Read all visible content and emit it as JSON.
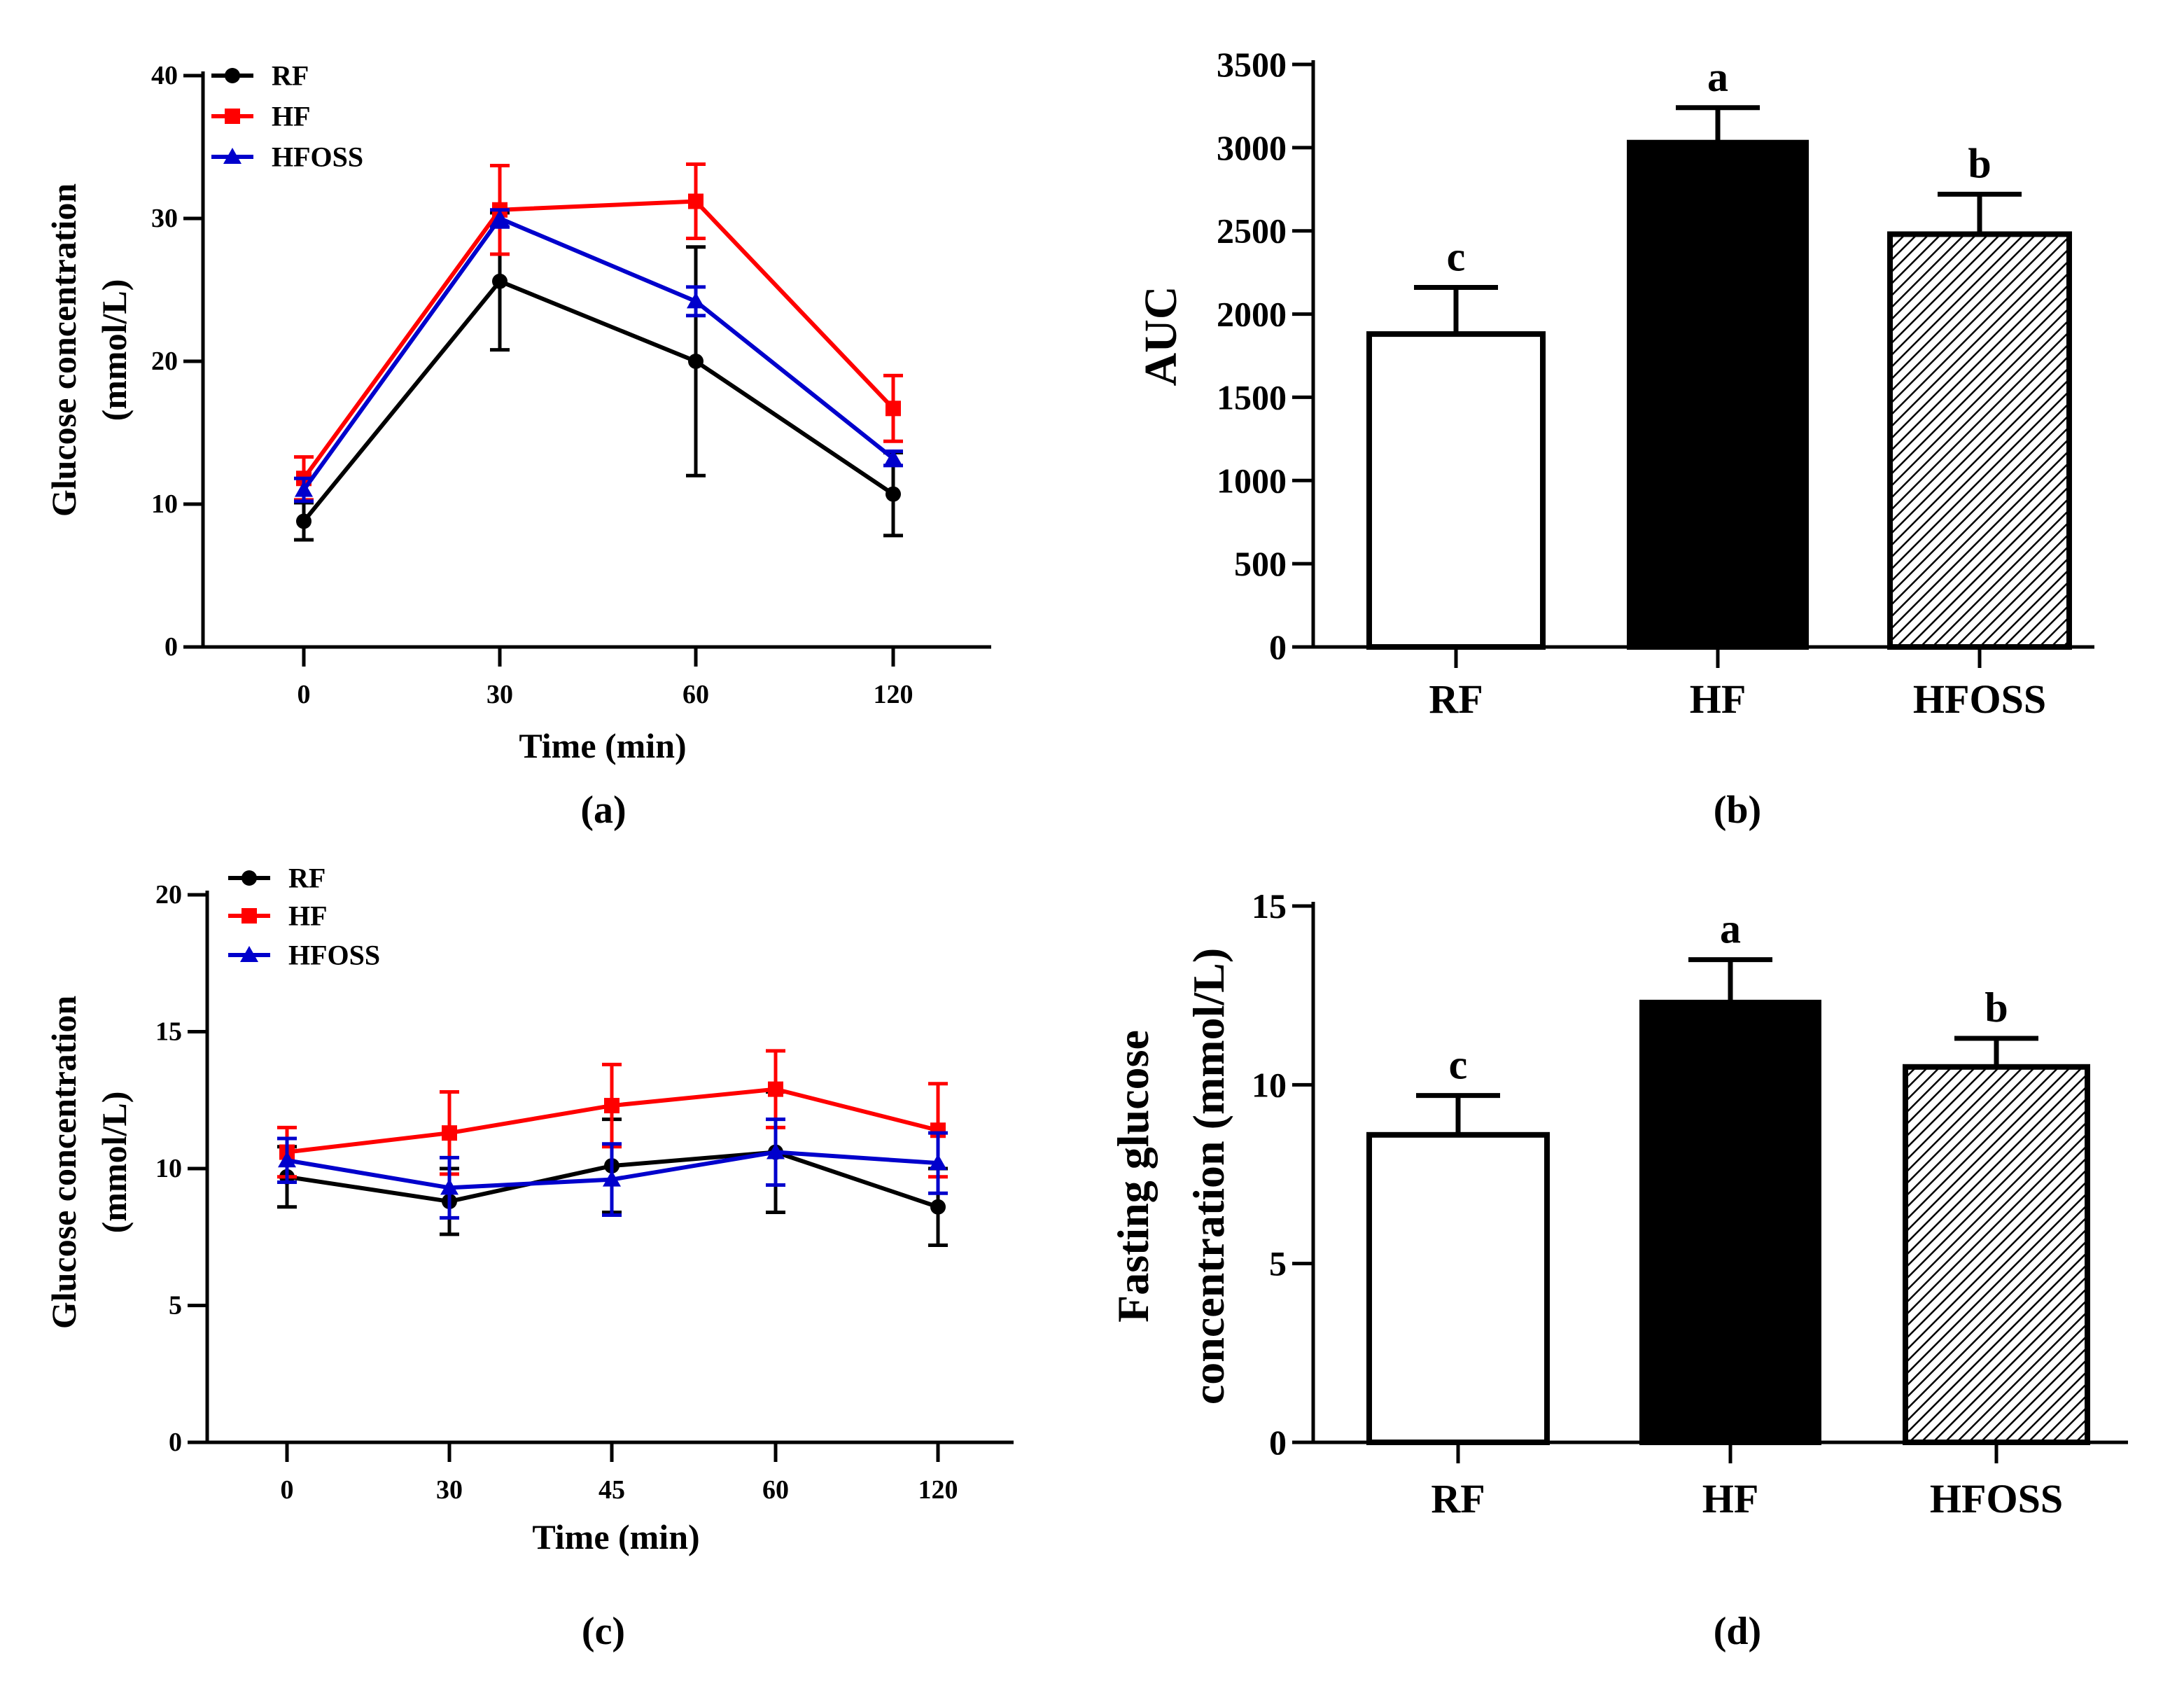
{
  "figure": {
    "panel_labels": [
      "(a)",
      "(b)",
      "(c)",
      "(d)"
    ]
  },
  "colors": {
    "RF": "#000000",
    "HF": "#ff0000",
    "HFOSS": "#0000cc"
  },
  "chart_data": [
    {
      "id": "a",
      "type": "line",
      "title": "",
      "xlabel": "Time (min)",
      "ylabel_lines": [
        "Glucose concentration",
        "(mmol/L)"
      ],
      "categories": [
        "0",
        "30",
        "60",
        "120"
      ],
      "ylim": [
        0,
        40
      ],
      "yticks": [
        "0",
        "10",
        "20",
        "30",
        "40"
      ],
      "legend": {
        "placement": "top-left",
        "entries": [
          "RF",
          "HF",
          "HFOSS"
        ]
      },
      "series": [
        {
          "name": "RF",
          "marker": "circle",
          "values": [
            8.8,
            25.6,
            20.0,
            10.7
          ],
          "errors": [
            1.3,
            4.8,
            8.0,
            2.9
          ]
        },
        {
          "name": "HF",
          "marker": "square",
          "values": [
            11.8,
            30.6,
            31.2,
            16.7
          ],
          "errors": [
            1.5,
            3.1,
            2.6,
            2.3
          ]
        },
        {
          "name": "HFOSS",
          "marker": "triangle",
          "values": [
            11.0,
            30.0,
            24.2,
            13.2
          ],
          "errors": [
            0.8,
            0.6,
            1.0,
            0.5
          ]
        }
      ]
    },
    {
      "id": "b",
      "type": "bar",
      "title": "",
      "xlabel": "",
      "ylabel_lines": [
        "AUC"
      ],
      "categories": [
        "RF",
        "HF",
        "HFOSS"
      ],
      "values": [
        1880,
        3030,
        2480
      ],
      "errors": [
        280,
        210,
        240
      ],
      "significance": [
        "c",
        "a",
        "b"
      ],
      "fills": [
        "white",
        "black",
        "hatched"
      ],
      "ylim": [
        0,
        3500
      ],
      "yticks": [
        "0",
        "500",
        "1000",
        "1500",
        "2000",
        "2500",
        "3000",
        "3500"
      ]
    },
    {
      "id": "c",
      "type": "line",
      "title": "",
      "xlabel": "Time (min)",
      "ylabel_lines": [
        "Glucose concentration",
        "(mmol/L)"
      ],
      "categories": [
        "0",
        "30",
        "45",
        "60",
        "120"
      ],
      "ylim": [
        0,
        20
      ],
      "yticks": [
        "0",
        "5",
        "10",
        "15",
        "20"
      ],
      "legend": {
        "placement": "top-left",
        "entries": [
          "RF",
          "HF",
          "HFOSS"
        ]
      },
      "series": [
        {
          "name": "RF",
          "marker": "circle",
          "values": [
            9.7,
            8.8,
            10.1,
            10.6,
            8.6
          ],
          "errors": [
            1.1,
            1.2,
            1.7,
            2.2,
            1.4
          ]
        },
        {
          "name": "HF",
          "marker": "square",
          "values": [
            10.6,
            11.3,
            12.3,
            12.9,
            11.4
          ],
          "errors": [
            0.9,
            1.5,
            1.5,
            1.4,
            1.7
          ]
        },
        {
          "name": "HFOSS",
          "marker": "triangle",
          "values": [
            10.3,
            9.3,
            9.6,
            10.6,
            10.2
          ],
          "errors": [
            0.8,
            1.1,
            1.3,
            1.2,
            1.1
          ]
        }
      ]
    },
    {
      "id": "d",
      "type": "bar",
      "title": "",
      "xlabel": "",
      "ylabel_lines": [
        "Fasting glucose",
        "concentration (mmol/L)"
      ],
      "categories": [
        "RF",
        "HF",
        "HFOSS"
      ],
      "values": [
        8.6,
        12.3,
        10.5
      ],
      "errors": [
        1.1,
        1.2,
        0.8
      ],
      "significance": [
        "c",
        "a",
        "b"
      ],
      "fills": [
        "white",
        "black",
        "hatched"
      ],
      "ylim": [
        0,
        15
      ],
      "yticks": [
        "0",
        "5",
        "10",
        "15"
      ]
    }
  ]
}
